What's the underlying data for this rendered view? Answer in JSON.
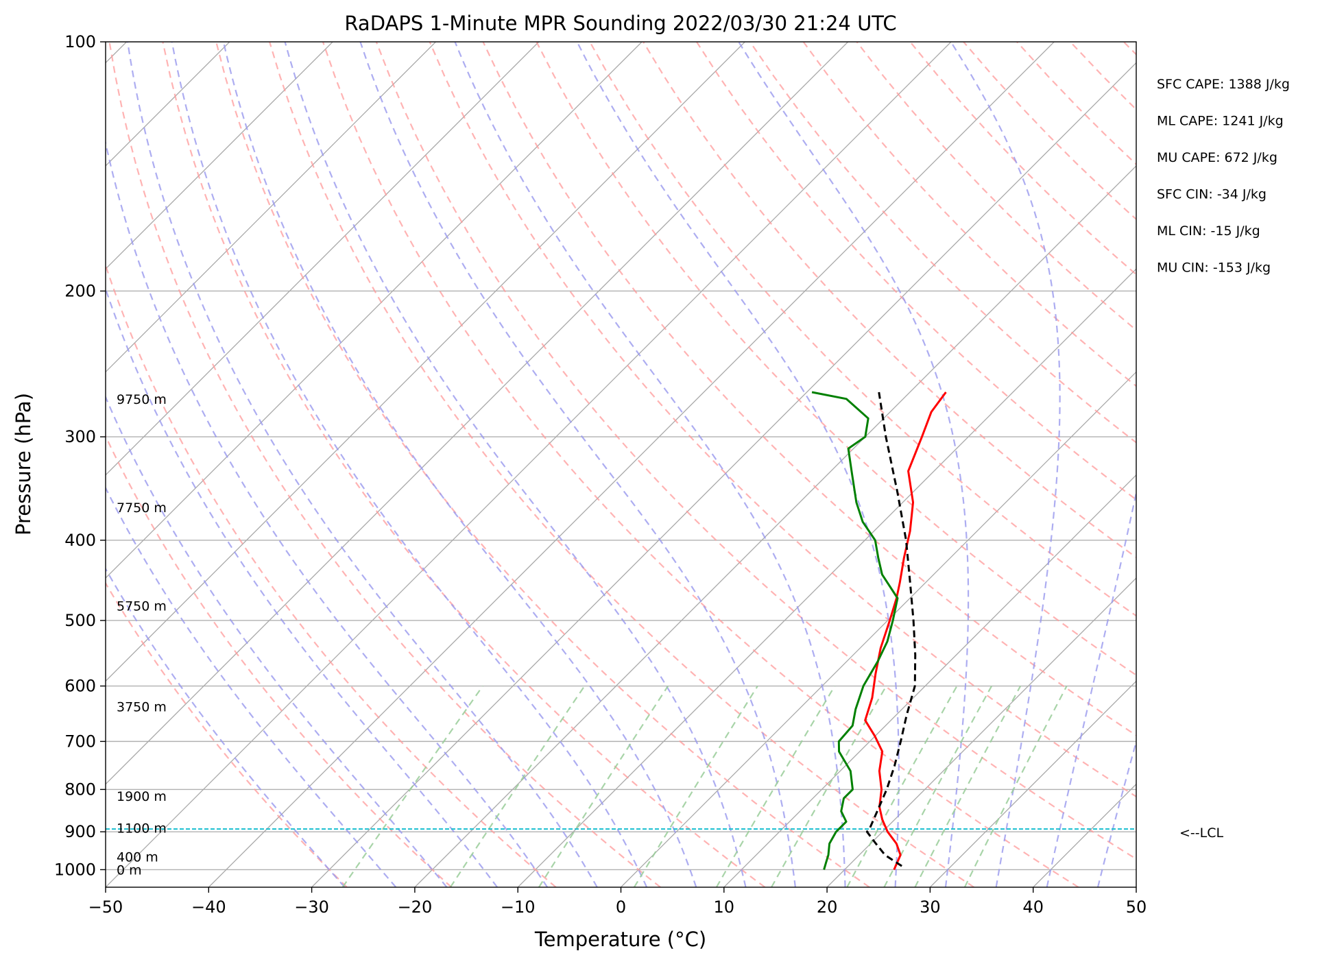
{
  "chart_data": {
    "type": "line",
    "subtype": "skew-T log-p sounding",
    "title": "RaDAPS 1-Minute MPR Sounding 2022/03/30 21:24 UTC",
    "xlabel": "Temperature (°C)",
    "ylabel": "Pressure (hPa)",
    "xlim": [
      -50,
      50
    ],
    "ylim": [
      1050,
      100
    ],
    "y_scale": "log",
    "x_ticks": [
      -50,
      -40,
      -30,
      -20,
      -10,
      0,
      10,
      20,
      30,
      40,
      50
    ],
    "x_tick_labels": [
      "−50",
      "−40",
      "−30",
      "−20",
      "−10",
      "0",
      "10",
      "20",
      "30",
      "40",
      "50"
    ],
    "y_ticks": [
      100,
      200,
      300,
      400,
      500,
      600,
      700,
      800,
      900,
      1000
    ],
    "y_tick_labels": [
      "100",
      "200",
      "300",
      "400",
      "500",
      "600",
      "700",
      "800",
      "900",
      "1000"
    ],
    "grid": true,
    "series": [
      {
        "role": "temperature",
        "color": "#ff0000",
        "points": [
          [
            1000,
            24.8
          ],
          [
            960,
            24.0
          ],
          [
            930,
            22.5
          ],
          [
            900,
            20.5
          ],
          [
            870,
            18.8
          ],
          [
            840,
            17.3
          ],
          [
            800,
            15.8
          ],
          [
            760,
            13.8
          ],
          [
            720,
            12.2
          ],
          [
            690,
            10.0
          ],
          [
            660,
            7.5
          ],
          [
            620,
            6.0
          ],
          [
            580,
            4.0
          ],
          [
            540,
            2.0
          ],
          [
            500,
            0.2
          ],
          [
            470,
            -1.3
          ],
          [
            450,
            -2.5
          ],
          [
            420,
            -4.5
          ],
          [
            390,
            -6.5
          ],
          [
            360,
            -9.0
          ],
          [
            330,
            -12.5
          ],
          [
            300,
            -14.5
          ],
          [
            280,
            -16.0
          ],
          [
            265,
            -16.5
          ]
        ]
      },
      {
        "role": "dewpoint",
        "color": "#008000",
        "points": [
          [
            1000,
            18.0
          ],
          [
            980,
            17.5
          ],
          [
            960,
            17.0
          ],
          [
            930,
            16.0
          ],
          [
            900,
            15.5
          ],
          [
            875,
            15.5
          ],
          [
            850,
            14.0
          ],
          [
            820,
            13.0
          ],
          [
            800,
            13.0
          ],
          [
            760,
            11.0
          ],
          [
            720,
            8.0
          ],
          [
            700,
            7.0
          ],
          [
            670,
            6.8
          ],
          [
            640,
            5.5
          ],
          [
            600,
            4.0
          ],
          [
            560,
            3.0
          ],
          [
            530,
            2.0
          ],
          [
            500,
            0.5
          ],
          [
            470,
            -1.2
          ],
          [
            440,
            -5.0
          ],
          [
            420,
            -7.0
          ],
          [
            400,
            -9.0
          ],
          [
            380,
            -12.0
          ],
          [
            360,
            -14.5
          ],
          [
            330,
            -18.0
          ],
          [
            310,
            -20.5
          ],
          [
            300,
            -20.0
          ],
          [
            285,
            -21.5
          ],
          [
            270,
            -25.5
          ],
          [
            265,
            -29.5
          ]
        ]
      },
      {
        "role": "parcel",
        "color": "#000000",
        "style": "dashed",
        "points": [
          [
            990,
            25.2
          ],
          [
            960,
            22.5
          ],
          [
            930,
            20.5
          ],
          [
            900,
            18.5
          ],
          [
            890,
            18.4
          ],
          [
            850,
            17.5
          ],
          [
            800,
            16.3
          ],
          [
            750,
            14.8
          ],
          [
            700,
            13.0
          ],
          [
            650,
            11.0
          ],
          [
            600,
            9.0
          ],
          [
            550,
            6.0
          ],
          [
            500,
            2.5
          ],
          [
            450,
            -1.5
          ],
          [
            400,
            -6.0
          ],
          [
            350,
            -11.5
          ],
          [
            300,
            -18.0
          ],
          [
            265,
            -23.0
          ]
        ]
      }
    ],
    "lcl_pressure": 893,
    "lcl_label": "<--LCL",
    "height_labels": [
      {
        "p": 1000,
        "text": "0 m"
      },
      {
        "p": 965,
        "text": "400 m"
      },
      {
        "p": 890,
        "text": "1100 m"
      },
      {
        "p": 815,
        "text": "1900 m"
      },
      {
        "p": 635,
        "text": "3750 m"
      },
      {
        "p": 480,
        "text": "5750 m"
      },
      {
        "p": 365,
        "text": "7750 m"
      },
      {
        "p": 270,
        "text": "9750 m"
      }
    ],
    "indices": [
      "SFC CAPE: 1388 J/kg",
      "ML CAPE: 1241 J/kg",
      "MU CAPE: 672 J/kg",
      "SFC CIN: -34 J/kg",
      "ML CIN: -15 J/kg",
      "MU CIN: -153 J/kg"
    ],
    "colors": {
      "isotherm": "#a9a9a9",
      "dry_adiabat": "#ff9999",
      "moist_adiabat": "#9999ee",
      "mixing_ratio": "#99cc99",
      "lcl_line": "#17becf"
    }
  }
}
